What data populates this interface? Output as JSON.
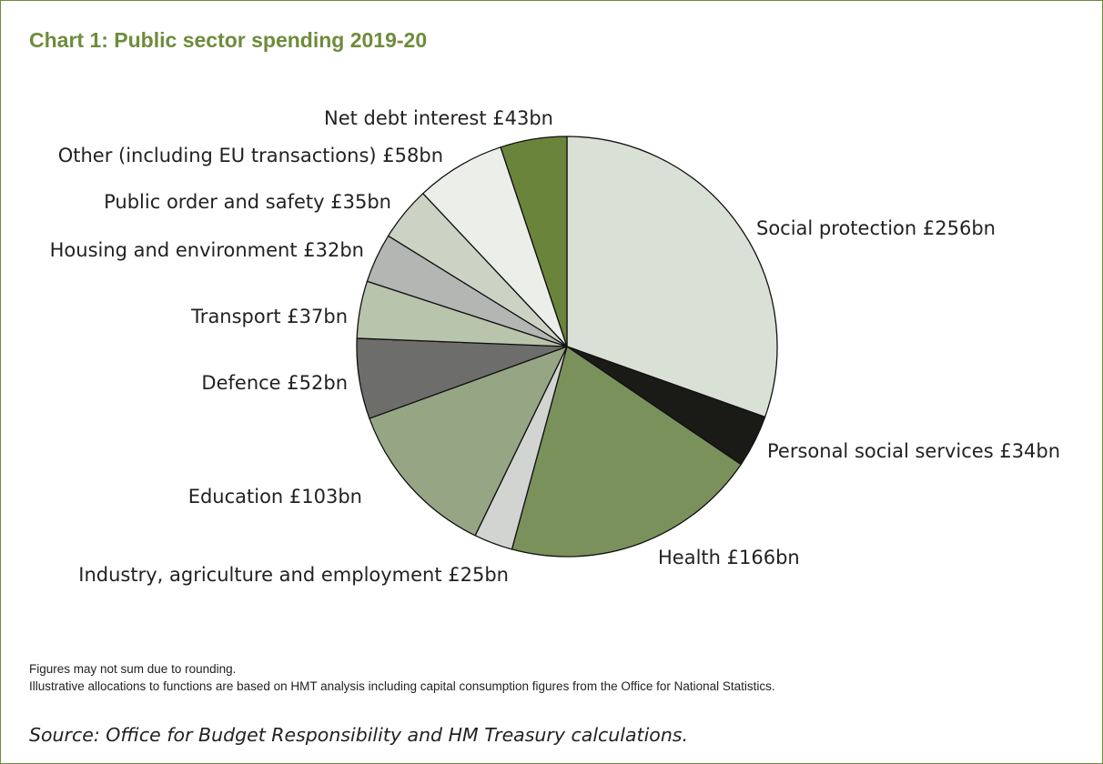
{
  "chart_data": {
    "type": "pie",
    "title": "Chart 1: Public sector spending 2019-20",
    "slices": [
      {
        "name": "Social protection",
        "value": 256,
        "label": "Social protection £256bn",
        "color": "#d9e0d5"
      },
      {
        "name": "Personal social services",
        "value": 34,
        "label": "Personal social services £34bn",
        "color": "#1a1a16"
      },
      {
        "name": "Health",
        "value": 166,
        "label": "Health £166bn",
        "color": "#7a915c"
      },
      {
        "name": "Industry, agriculture and employment",
        "value": 25,
        "label": "Industry, agriculture and employment £25bn",
        "color": "#d2d4d1"
      },
      {
        "name": "Education",
        "value": 103,
        "label": "Education £103bn",
        "color": "#96a685"
      },
      {
        "name": "Defence",
        "value": 52,
        "label": "Defence £52bn",
        "color": "#6d6d6b"
      },
      {
        "name": "Transport",
        "value": 37,
        "label": "Transport £37bn",
        "color": "#b8c4ab"
      },
      {
        "name": "Housing and environment",
        "value": 32,
        "label": "Housing and environment £32bn",
        "color": "#b4b6b3"
      },
      {
        "name": "Public order and safety",
        "value": 35,
        "label": "Public order and safety £35bn",
        "color": "#ccd3c5"
      },
      {
        "name": "Other (including EU transactions)",
        "value": 58,
        "label": "Other (including EU transactions) £58bn",
        "color": "#ebeee9"
      },
      {
        "name": "Net debt interest",
        "value": 43,
        "label": "Net debt interest £43bn",
        "color": "#6a843c"
      }
    ],
    "start": "12 o'clock",
    "direction": "clockwise",
    "units": "£bn"
  },
  "notes": [
    "Figures may not sum due to rounding.",
    "Illustrative allocations to functions are based on HMT analysis including capital consumption figures from the Office for National Statistics."
  ],
  "source": "Source: Office for Budget Responsibility and HM Treasury calculations."
}
